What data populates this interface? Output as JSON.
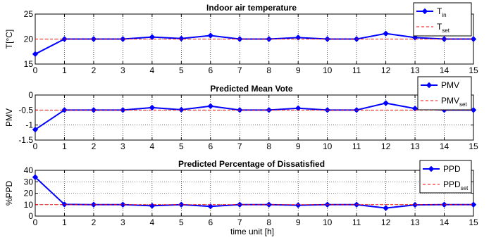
{
  "chart_data": [
    {
      "type": "line",
      "title": "Indoor air temperature",
      "ylabel": "T[°C]",
      "xlabel": "",
      "xlim": [
        0,
        15
      ],
      "ylim": [
        15,
        25
      ],
      "xticks": [
        "0",
        "1",
        "2",
        "3",
        "4",
        "5",
        "6",
        "7",
        "8",
        "9",
        "10",
        "11",
        "12",
        "13",
        "14",
        "15"
      ],
      "yticks": [
        "15",
        "20",
        "25"
      ],
      "grid": true,
      "legend_position": "top-right",
      "x": [
        0,
        1,
        2,
        3,
        4,
        5,
        6,
        7,
        8,
        9,
        10,
        11,
        12,
        13,
        14,
        15
      ],
      "series": [
        {
          "name": "T",
          "name_sub": "in",
          "color": "#0000ff",
          "style": "solid-marker",
          "values": [
            17,
            20,
            20,
            20,
            20.4,
            20.1,
            20.7,
            20,
            20,
            20.3,
            20,
            20,
            21.1,
            20.3,
            20,
            20
          ]
        },
        {
          "name": "T",
          "name_sub": "set",
          "color": "#ff0000",
          "style": "dashed",
          "values": [
            20,
            20,
            20,
            20,
            20,
            20,
            20,
            20,
            20,
            20,
            20,
            20,
            20,
            20,
            20,
            20
          ]
        }
      ]
    },
    {
      "type": "line",
      "title": "Predicted Mean Vote",
      "ylabel": "PMV",
      "xlabel": "",
      "xlim": [
        0,
        15
      ],
      "ylim": [
        -1.5,
        0
      ],
      "xticks": [
        "0",
        "1",
        "2",
        "3",
        "4",
        "5",
        "6",
        "7",
        "8",
        "9",
        "10",
        "11",
        "12",
        "13",
        "14",
        "15"
      ],
      "yticks": [
        "-1.5",
        "-1",
        "-0.5",
        "0"
      ],
      "grid": true,
      "legend_position": "top-right",
      "x": [
        0,
        1,
        2,
        3,
        4,
        5,
        6,
        7,
        8,
        9,
        10,
        11,
        12,
        13,
        14,
        15
      ],
      "series": [
        {
          "name": "PMV",
          "name_sub": "",
          "color": "#0000ff",
          "style": "solid-marker",
          "values": [
            -1.15,
            -0.5,
            -0.5,
            -0.5,
            -0.42,
            -0.49,
            -0.37,
            -0.5,
            -0.5,
            -0.44,
            -0.5,
            -0.5,
            -0.27,
            -0.45,
            -0.5,
            -0.5
          ]
        },
        {
          "name": "PMV",
          "name_sub": "set",
          "color": "#ff0000",
          "style": "dashed",
          "values": [
            -0.5,
            -0.5,
            -0.5,
            -0.5,
            -0.5,
            -0.5,
            -0.5,
            -0.5,
            -0.5,
            -0.5,
            -0.5,
            -0.5,
            -0.5,
            -0.5,
            -0.5,
            -0.5
          ]
        }
      ]
    },
    {
      "type": "line",
      "title": "Predicted Percentage of Dissatisfied",
      "ylabel": "%PPD",
      "xlabel": "time unit [h]",
      "xlim": [
        0,
        15
      ],
      "ylim": [
        0,
        40
      ],
      "xticks": [
        "0",
        "1",
        "2",
        "3",
        "4",
        "5",
        "6",
        "7",
        "8",
        "9",
        "10",
        "11",
        "12",
        "13",
        "14",
        "15"
      ],
      "yticks": [
        "0",
        "10",
        "20",
        "30",
        "40"
      ],
      "grid": true,
      "legend_position": "top-right",
      "x": [
        0,
        1,
        2,
        3,
        4,
        5,
        6,
        7,
        8,
        9,
        10,
        11,
        12,
        13,
        14,
        15
      ],
      "series": [
        {
          "name": "PPD",
          "name_sub": "",
          "color": "#0000ff",
          "style": "solid-marker",
          "values": [
            34,
            10.2,
            10,
            10,
            9,
            10,
            8.5,
            10,
            10,
            9.5,
            10,
            10,
            7,
            9.8,
            10,
            10
          ]
        },
        {
          "name": "PPD",
          "name_sub": "set",
          "color": "#ff0000",
          "style": "dashed",
          "values": [
            10,
            10,
            10,
            10,
            10,
            10,
            10,
            10,
            10,
            10,
            10,
            10,
            10,
            10,
            10,
            10
          ]
        }
      ]
    }
  ]
}
